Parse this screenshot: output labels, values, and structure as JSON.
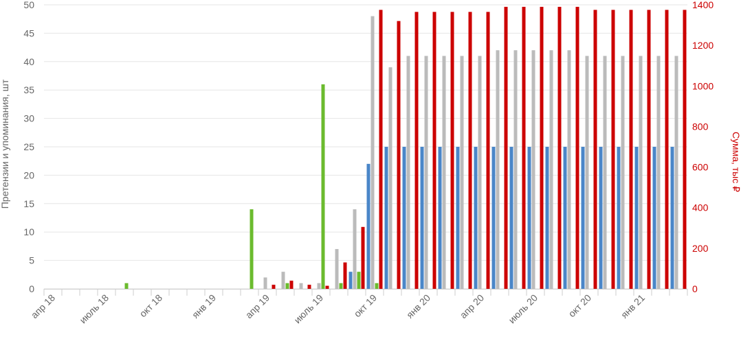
{
  "chart_data": {
    "type": "bar",
    "title": "",
    "ylabel": "Претензии и упоминания, шт",
    "y2label": "Сумма, тыс ₽",
    "ylim": [
      0,
      50
    ],
    "y2lim": [
      0,
      1400
    ],
    "yticks": [
      0,
      5,
      10,
      15,
      20,
      25,
      30,
      35,
      40,
      45,
      50
    ],
    "y2ticks": [
      0,
      200,
      400,
      600,
      800,
      1000,
      1200,
      1400
    ],
    "categories": [
      "2018-04",
      "2018-05",
      "2018-06",
      "2018-07",
      "2018-08",
      "2018-09",
      "2018-10",
      "2018-11",
      "2018-12",
      "2019-01",
      "2019-02",
      "2019-03",
      "2019-04",
      "2019-05",
      "2019-06",
      "2019-07",
      "2019-08",
      "2019-09",
      "2019-10",
      "2019-11",
      "2019-12",
      "2020-01",
      "2020-02",
      "2020-03",
      "2020-04",
      "2020-05",
      "2020-06",
      "2020-07",
      "2020-08",
      "2020-09",
      "2020-10",
      "2020-11",
      "2020-12",
      "2021-01",
      "2021-02",
      "2021-03"
    ],
    "xtick_labels": [
      {
        "index": 0,
        "label": "апр 18"
      },
      {
        "index": 3,
        "label": "июль 18"
      },
      {
        "index": 6,
        "label": "окт 18"
      },
      {
        "index": 9,
        "label": "янв 19"
      },
      {
        "index": 12,
        "label": "апр 19"
      },
      {
        "index": 15,
        "label": "июль 19"
      },
      {
        "index": 18,
        "label": "окт 19"
      },
      {
        "index": 21,
        "label": "янв 20"
      },
      {
        "index": 24,
        "label": "апр 20"
      },
      {
        "index": 27,
        "label": "июль 20"
      },
      {
        "index": 30,
        "label": "окт 20"
      },
      {
        "index": 33,
        "label": "янв 21"
      }
    ],
    "series": [
      {
        "color": "#4a86c8",
        "axis": "left",
        "values": [
          0,
          0,
          0,
          0,
          0,
          0,
          0,
          0,
          0,
          0,
          0,
          0,
          0,
          0,
          0,
          0,
          0,
          3,
          22,
          25,
          25,
          25,
          25,
          25,
          25,
          25,
          25,
          25,
          25,
          25,
          25,
          25,
          25,
          25,
          25,
          25
        ]
      },
      {
        "color": "#bbbbbb",
        "axis": "left",
        "values": [
          0,
          0,
          0,
          0,
          0,
          0,
          0,
          0,
          0,
          0,
          0,
          0,
          2,
          3,
          1,
          1,
          7,
          14,
          48,
          39,
          41,
          41,
          41,
          41,
          41,
          42,
          42,
          42,
          42,
          42,
          41,
          41,
          41,
          41,
          41,
          41
        ]
      },
      {
        "color": "#6bbb2e",
        "axis": "left",
        "values": [
          0,
          0,
          0,
          0,
          1,
          0,
          0,
          0,
          0,
          0,
          0,
          14,
          0,
          1,
          0,
          36,
          1,
          3,
          1,
          0,
          0,
          0,
          0,
          0,
          0,
          0,
          0,
          0,
          0,
          0,
          0,
          0,
          0,
          0,
          0,
          0
        ]
      },
      {
        "color": "#cc0000",
        "axis": "right",
        "values": [
          0,
          0,
          0,
          0,
          0,
          0,
          0,
          0,
          0,
          0,
          0,
          0,
          20,
          40,
          20,
          15,
          130,
          305,
          1375,
          1320,
          1365,
          1365,
          1365,
          1365,
          1365,
          1390,
          1390,
          1390,
          1390,
          1390,
          1375,
          1375,
          1375,
          1375,
          1375,
          1375
        ]
      }
    ],
    "grid": true
  }
}
